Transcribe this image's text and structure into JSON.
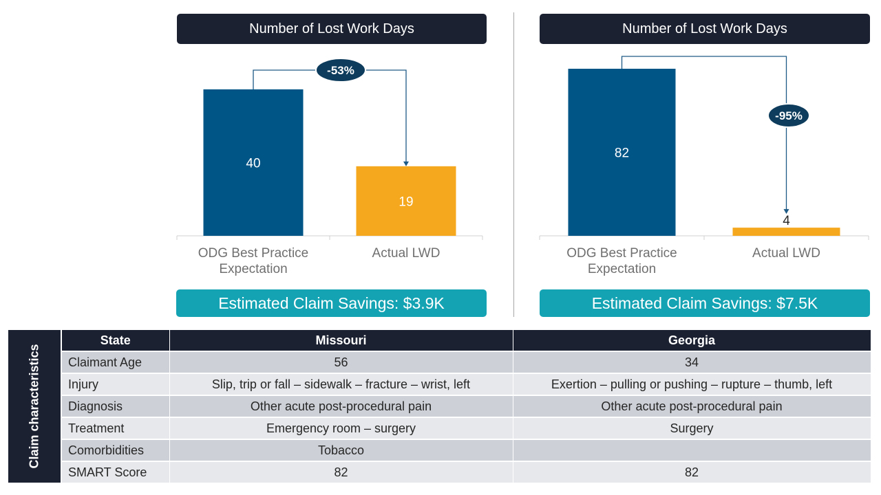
{
  "chart_data": [
    {
      "type": "bar",
      "title": "Number  of Lost Work Days",
      "categories": [
        "ODG Best Practice Expectation",
        "Actual LWD"
      ],
      "category_lines": [
        [
          "ODG Best Practice",
          "Expectation"
        ],
        [
          "Actual LWD"
        ]
      ],
      "values": [
        40,
        19
      ],
      "value_labels": [
        "40",
        "19"
      ],
      "change_label": "-53%",
      "savings": "Estimated Claim Savings: $3.9K",
      "ylim": [
        0,
        40
      ]
    },
    {
      "type": "bar",
      "title": "Number  of Lost Work Days",
      "categories": [
        "ODG Best Practice Expectation",
        "Actual LWD"
      ],
      "category_lines": [
        [
          "ODG Best Practice",
          "Expectation"
        ],
        [
          "Actual LWD"
        ]
      ],
      "values": [
        82,
        4
      ],
      "value_labels": [
        "82",
        "4"
      ],
      "change_label": "-95%",
      "savings": "Estimated Claim Savings: $7.5K",
      "ylim": [
        0,
        82
      ]
    }
  ],
  "colors": {
    "expected_bar": "#005587",
    "actual_bar": "#f5a81e",
    "header_dark": "#1b2130",
    "savings_teal": "#14a3b3"
  },
  "table": {
    "side_label": "Claim characteristics",
    "headers": [
      "State",
      "Missouri",
      "Georgia"
    ],
    "rows": [
      [
        "Claimant Age",
        "56",
        "34"
      ],
      [
        "Injury",
        "Slip, trip or fall – sidewalk – fracture – wrist, left",
        "Exertion – pulling or pushing – rupture – thumb, left"
      ],
      [
        "Diagnosis",
        "Other acute post-procedural pain",
        "Other acute post-procedural pain"
      ],
      [
        "Treatment",
        "Emergency room – surgery",
        "Surgery"
      ],
      [
        "Comorbidities",
        "Tobacco",
        ""
      ],
      [
        "SMART Score",
        "82",
        "82"
      ]
    ]
  }
}
